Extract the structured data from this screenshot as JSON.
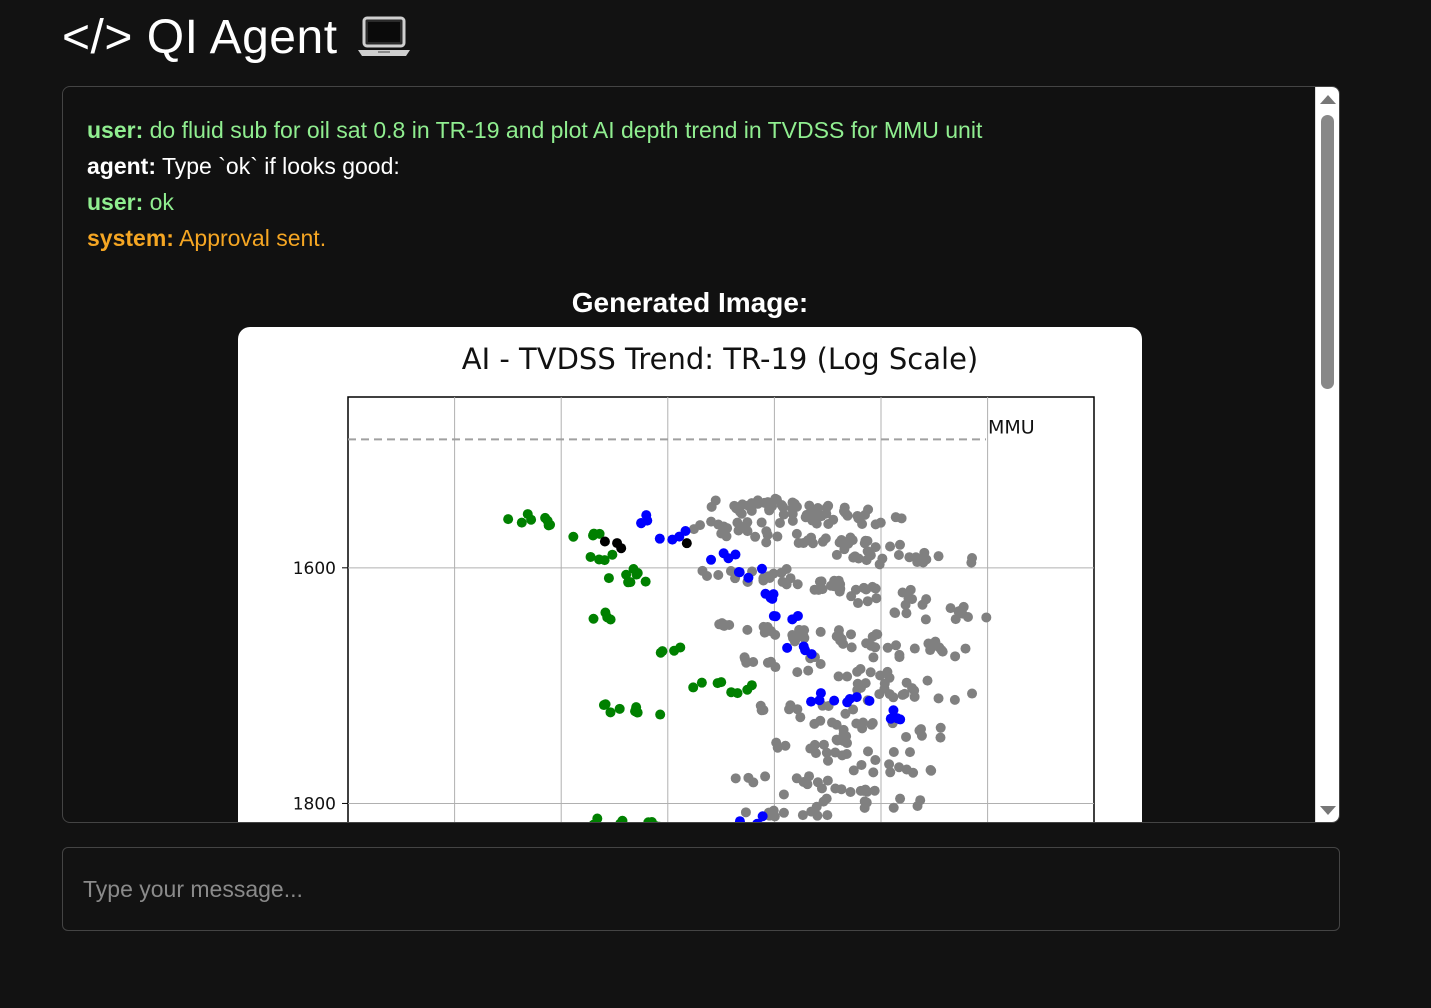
{
  "app": {
    "title": "</> QI Agent",
    "title_icon": "laptop-icon"
  },
  "messages": [
    {
      "role": "user",
      "role_label": "user:",
      "text": "do fluid sub for oil sat 0.8 in TR-19 and plot AI depth trend in TVDSS for MMU unit",
      "color": "#90ee90"
    },
    {
      "role": "agent",
      "role_label": "agent:",
      "text": "Type `ok` if looks good:",
      "color": "#ffffff"
    },
    {
      "role": "user",
      "role_label": "user:",
      "text": "ok",
      "color": "#90ee90"
    },
    {
      "role": "system",
      "role_label": "system:",
      "text": "Approval sent.",
      "color": "#f5a623"
    }
  ],
  "generated_image": {
    "heading": "Generated Image:"
  },
  "chart_data": {
    "type": "scatter",
    "title": "AI - TVDSS Trend: TR-19 (Log Scale)",
    "xlabel": "",
    "ylabel": "",
    "y_inverted": true,
    "y_visible_range": [
      1455,
      1820
    ],
    "yticks": [
      1600,
      1800
    ],
    "grid": true,
    "annotations": [
      {
        "text": "MMU",
        "tvdss": 1491,
        "style": "dashed horizontal line"
      }
    ],
    "series": [
      {
        "color": "#808080",
        "note": "bulk trend points",
        "points": [
          [
            0.52,
            1545
          ],
          [
            0.56,
            1550
          ],
          [
            0.6,
            1548
          ],
          [
            0.64,
            1552
          ],
          [
            0.68,
            1556
          ],
          [
            0.72,
            1560
          ],
          [
            0.5,
            1565
          ],
          [
            0.55,
            1570
          ],
          [
            0.62,
            1575
          ],
          [
            0.7,
            1580
          ],
          [
            0.78,
            1590
          ],
          [
            0.86,
            1595
          ],
          [
            0.5,
            1605
          ],
          [
            0.58,
            1610
          ],
          [
            0.66,
            1615
          ],
          [
            0.74,
            1620
          ],
          [
            0.83,
            1630
          ],
          [
            0.9,
            1640
          ],
          [
            0.54,
            1650
          ],
          [
            0.62,
            1655
          ],
          [
            0.7,
            1660
          ],
          [
            0.78,
            1665
          ],
          [
            0.86,
            1672
          ],
          [
            0.6,
            1680
          ],
          [
            0.68,
            1690
          ],
          [
            0.76,
            1700
          ],
          [
            0.84,
            1710
          ],
          [
            0.62,
            1720
          ],
          [
            0.7,
            1730
          ],
          [
            0.78,
            1740
          ],
          [
            0.64,
            1750
          ],
          [
            0.72,
            1760
          ],
          [
            0.8,
            1770
          ],
          [
            0.58,
            1780
          ],
          [
            0.66,
            1790
          ],
          [
            0.74,
            1800
          ],
          [
            0.6,
            1810
          ]
        ]
      },
      {
        "color": "#0000ff",
        "note": "fluid-substituted points",
        "points": [
          [
            0.3,
            1558
          ],
          [
            0.35,
            1572
          ],
          [
            0.45,
            1590
          ],
          [
            0.5,
            1605
          ],
          [
            0.55,
            1625
          ],
          [
            0.58,
            1640
          ],
          [
            0.6,
            1670
          ],
          [
            0.65,
            1710
          ],
          [
            0.72,
            1712
          ],
          [
            0.8,
            1725
          ],
          [
            0.5,
            1815
          ]
        ]
      },
      {
        "color": "#008000",
        "note": "oil-saturated points",
        "points": [
          [
            0.05,
            1558
          ],
          [
            0.12,
            1560
          ],
          [
            0.18,
            1575
          ],
          [
            0.2,
            1590
          ],
          [
            0.25,
            1605
          ],
          [
            0.28,
            1610
          ],
          [
            0.2,
            1640
          ],
          [
            0.35,
            1670
          ],
          [
            0.22,
            1720
          ],
          [
            0.3,
            1722
          ],
          [
            0.42,
            1700
          ],
          [
            0.48,
            1703
          ],
          [
            0.22,
            1815
          ],
          [
            0.3,
            1818
          ]
        ]
      },
      {
        "color": "#000000",
        "note": "points",
        "points": [
          [
            0.2,
            1581
          ],
          [
            0.23,
            1581
          ],
          [
            0.26,
            1580
          ],
          [
            0.36,
            1581
          ]
        ]
      }
    ]
  }
}
